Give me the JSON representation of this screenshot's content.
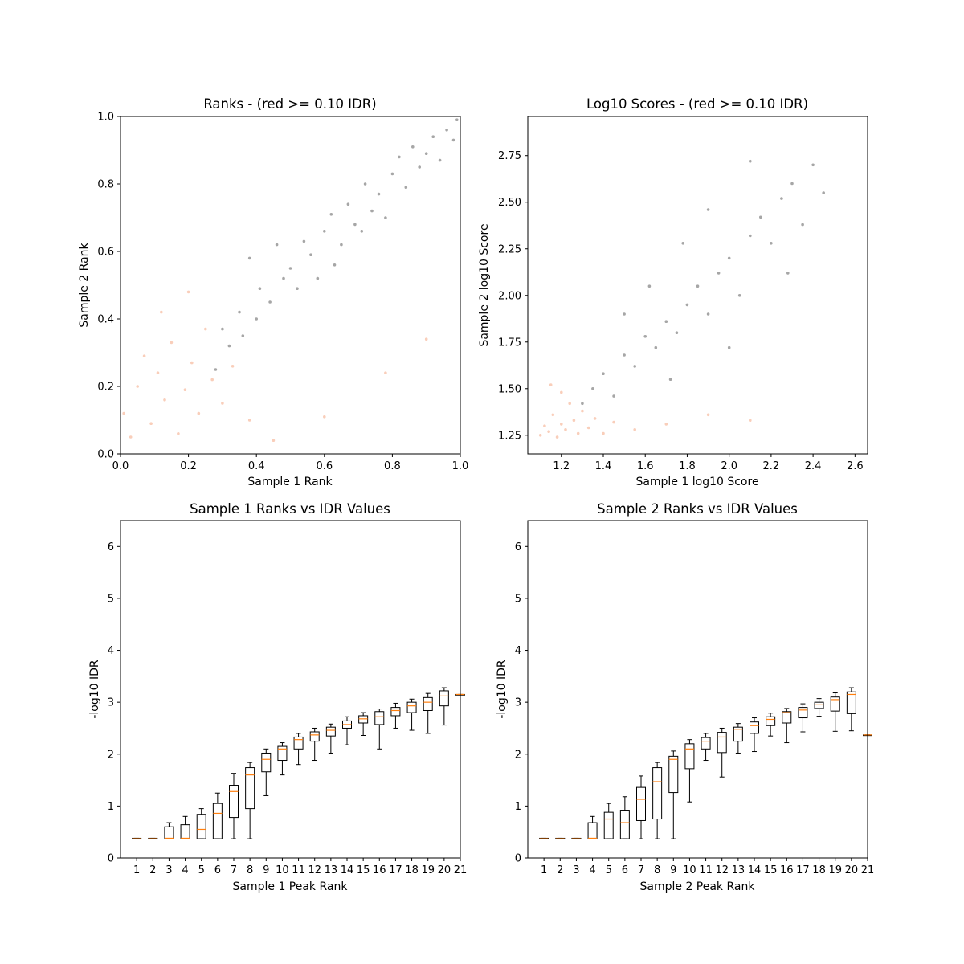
{
  "chart_data": [
    {
      "type": "scatter",
      "title": "Ranks - (red >= 0.10 IDR)",
      "xlabel": "Sample 1 Rank",
      "ylabel": "Sample 2 Rank",
      "xlim": [
        0.0,
        1.0
      ],
      "ylim": [
        0.0,
        1.0
      ],
      "xticks": [
        "0.0",
        "0.2",
        "0.4",
        "0.6",
        "0.8",
        "1.0"
      ],
      "yticks": [
        "0.0",
        "0.2",
        "0.4",
        "0.6",
        "0.8",
        "1.0"
      ],
      "grid": false,
      "colors": {
        "passing": "#808080",
        "failing": "#f4a582"
      },
      "series": [
        {
          "group": "passing",
          "points": [
            [
              0.28,
              0.25
            ],
            [
              0.3,
              0.37
            ],
            [
              0.32,
              0.32
            ],
            [
              0.35,
              0.42
            ],
            [
              0.36,
              0.35
            ],
            [
              0.38,
              0.58
            ],
            [
              0.4,
              0.4
            ],
            [
              0.41,
              0.49
            ],
            [
              0.44,
              0.45
            ],
            [
              0.46,
              0.62
            ],
            [
              0.48,
              0.52
            ],
            [
              0.5,
              0.55
            ],
            [
              0.52,
              0.49
            ],
            [
              0.54,
              0.63
            ],
            [
              0.56,
              0.59
            ],
            [
              0.58,
              0.52
            ],
            [
              0.6,
              0.66
            ],
            [
              0.62,
              0.71
            ],
            [
              0.63,
              0.56
            ],
            [
              0.65,
              0.62
            ],
            [
              0.67,
              0.74
            ],
            [
              0.69,
              0.68
            ],
            [
              0.71,
              0.66
            ],
            [
              0.72,
              0.8
            ],
            [
              0.74,
              0.72
            ],
            [
              0.76,
              0.77
            ],
            [
              0.78,
              0.7
            ],
            [
              0.8,
              0.83
            ],
            [
              0.82,
              0.88
            ],
            [
              0.84,
              0.79
            ],
            [
              0.86,
              0.91
            ],
            [
              0.88,
              0.85
            ],
            [
              0.9,
              0.89
            ],
            [
              0.92,
              0.94
            ],
            [
              0.94,
              0.87
            ],
            [
              0.96,
              0.96
            ],
            [
              0.98,
              0.93
            ],
            [
              0.99,
              0.99
            ]
          ]
        },
        {
          "group": "failing",
          "points": [
            [
              0.01,
              0.12
            ],
            [
              0.03,
              0.05
            ],
            [
              0.05,
              0.2
            ],
            [
              0.07,
              0.29
            ],
            [
              0.09,
              0.09
            ],
            [
              0.11,
              0.24
            ],
            [
              0.13,
              0.16
            ],
            [
              0.15,
              0.33
            ],
            [
              0.17,
              0.06
            ],
            [
              0.19,
              0.19
            ],
            [
              0.21,
              0.27
            ],
            [
              0.23,
              0.12
            ],
            [
              0.25,
              0.37
            ],
            [
              0.27,
              0.22
            ],
            [
              0.3,
              0.15
            ],
            [
              0.33,
              0.26
            ],
            [
              0.38,
              0.1
            ],
            [
              0.45,
              0.04
            ],
            [
              0.12,
              0.42
            ],
            [
              0.2,
              0.48
            ],
            [
              0.6,
              0.11
            ],
            [
              0.78,
              0.24
            ],
            [
              0.9,
              0.34
            ]
          ]
        }
      ]
    },
    {
      "type": "scatter",
      "title": "Log10 Scores - (red >= 0.10 IDR)",
      "xlabel": "Sample 1 log10 Score",
      "ylabel": "Sample 2 log10 Score",
      "xlim": [
        1.04,
        2.66
      ],
      "ylim": [
        1.15,
        2.96
      ],
      "xticks": [
        "1.2",
        "1.4",
        "1.6",
        "1.8",
        "2.0",
        "2.2",
        "2.4",
        "2.6"
      ],
      "yticks": [
        "1.25",
        "1.50",
        "1.75",
        "2.00",
        "2.25",
        "2.50",
        "2.75"
      ],
      "grid": false,
      "colors": {
        "passing": "#808080",
        "failing": "#f4a582"
      },
      "series": [
        {
          "group": "passing",
          "points": [
            [
              1.3,
              1.42
            ],
            [
              1.35,
              1.5
            ],
            [
              1.4,
              1.58
            ],
            [
              1.45,
              1.46
            ],
            [
              1.5,
              1.68
            ],
            [
              1.55,
              1.62
            ],
            [
              1.6,
              1.78
            ],
            [
              1.65,
              1.72
            ],
            [
              1.7,
              1.86
            ],
            [
              1.75,
              1.8
            ],
            [
              1.8,
              1.95
            ],
            [
              1.85,
              2.05
            ],
            [
              1.9,
              1.9
            ],
            [
              1.95,
              2.12
            ],
            [
              2.0,
              2.2
            ],
            [
              2.05,
              2.0
            ],
            [
              2.1,
              2.32
            ],
            [
              2.15,
              2.42
            ],
            [
              2.2,
              2.28
            ],
            [
              2.25,
              2.52
            ],
            [
              2.3,
              2.6
            ],
            [
              2.35,
              2.38
            ],
            [
              2.4,
              2.7
            ],
            [
              2.45,
              2.55
            ],
            [
              1.62,
              2.05
            ],
            [
              1.78,
              2.28
            ],
            [
              1.9,
              2.46
            ],
            [
              2.1,
              2.72
            ],
            [
              1.5,
              1.9
            ],
            [
              1.72,
              1.55
            ],
            [
              2.0,
              1.72
            ],
            [
              2.28,
              2.12
            ]
          ]
        },
        {
          "group": "failing",
          "points": [
            [
              1.1,
              1.25
            ],
            [
              1.12,
              1.3
            ],
            [
              1.14,
              1.27
            ],
            [
              1.16,
              1.36
            ],
            [
              1.18,
              1.24
            ],
            [
              1.2,
              1.31
            ],
            [
              1.22,
              1.28
            ],
            [
              1.24,
              1.42
            ],
            [
              1.26,
              1.33
            ],
            [
              1.28,
              1.26
            ],
            [
              1.3,
              1.38
            ],
            [
              1.33,
              1.29
            ],
            [
              1.36,
              1.34
            ],
            [
              1.4,
              1.26
            ],
            [
              1.45,
              1.32
            ],
            [
              1.55,
              1.28
            ],
            [
              1.7,
              1.31
            ],
            [
              1.9,
              1.36
            ],
            [
              2.1,
              1.33
            ],
            [
              1.15,
              1.52
            ],
            [
              1.2,
              1.48
            ]
          ]
        }
      ]
    },
    {
      "type": "box",
      "title": "Sample 1 Ranks vs IDR Values",
      "xlabel": "Sample 1 Peak Rank",
      "ylabel": "-log10 IDR",
      "ylim": [
        0,
        6.5
      ],
      "xticks": [
        "1",
        "2",
        "3",
        "4",
        "5",
        "6",
        "7",
        "8",
        "9",
        "10",
        "11",
        "12",
        "13",
        "14",
        "15",
        "16",
        "17",
        "18",
        "19",
        "20",
        "21"
      ],
      "yticks": [
        "0",
        "1",
        "2",
        "3",
        "4",
        "5",
        "6"
      ],
      "grid": false,
      "series": [
        {
          "name": "",
          "boxes": [
            {
              "x": 1,
              "whislo": 0.37,
              "q1": 0.37,
              "med": 0.37,
              "q3": 0.38,
              "whishi": 0.38
            },
            {
              "x": 2,
              "whislo": 0.37,
              "q1": 0.37,
              "med": 0.37,
              "q3": 0.38,
              "whishi": 0.38
            },
            {
              "x": 3,
              "whislo": 0.37,
              "q1": 0.37,
              "med": 0.38,
              "q3": 0.6,
              "whishi": 0.68
            },
            {
              "x": 4,
              "whislo": 0.37,
              "q1": 0.37,
              "med": 0.38,
              "q3": 0.64,
              "whishi": 0.8
            },
            {
              "x": 5,
              "whislo": 0.37,
              "q1": 0.37,
              "med": 0.55,
              "q3": 0.84,
              "whishi": 0.95
            },
            {
              "x": 6,
              "whislo": 0.37,
              "q1": 0.37,
              "med": 0.86,
              "q3": 1.05,
              "whishi": 1.25
            },
            {
              "x": 7,
              "whislo": 0.37,
              "q1": 0.78,
              "med": 1.28,
              "q3": 1.4,
              "whishi": 1.63
            },
            {
              "x": 8,
              "whislo": 0.37,
              "q1": 0.95,
              "med": 1.6,
              "q3": 1.74,
              "whishi": 1.84
            },
            {
              "x": 9,
              "whislo": 1.2,
              "q1": 1.66,
              "med": 1.9,
              "q3": 2.02,
              "whishi": 2.1
            },
            {
              "x": 10,
              "whislo": 1.6,
              "q1": 1.88,
              "med": 2.1,
              "q3": 2.15,
              "whishi": 2.22
            },
            {
              "x": 11,
              "whislo": 1.8,
              "q1": 2.1,
              "med": 2.28,
              "q3": 2.33,
              "whishi": 2.4
            },
            {
              "x": 12,
              "whislo": 1.88,
              "q1": 2.25,
              "med": 2.37,
              "q3": 2.43,
              "whishi": 2.5
            },
            {
              "x": 13,
              "whislo": 2.02,
              "q1": 2.35,
              "med": 2.46,
              "q3": 2.52,
              "whishi": 2.58
            },
            {
              "x": 14,
              "whislo": 2.18,
              "q1": 2.5,
              "med": 2.57,
              "q3": 2.64,
              "whishi": 2.72
            },
            {
              "x": 15,
              "whislo": 2.36,
              "q1": 2.6,
              "med": 2.68,
              "q3": 2.74,
              "whishi": 2.8
            },
            {
              "x": 16,
              "whislo": 2.1,
              "q1": 2.57,
              "med": 2.72,
              "q3": 2.82,
              "whishi": 2.87
            },
            {
              "x": 17,
              "whislo": 2.5,
              "q1": 2.74,
              "med": 2.84,
              "q3": 2.9,
              "whishi": 2.98
            },
            {
              "x": 18,
              "whislo": 2.46,
              "q1": 2.8,
              "med": 2.93,
              "q3": 3.0,
              "whishi": 3.06
            },
            {
              "x": 19,
              "whislo": 2.4,
              "q1": 2.84,
              "med": 3.0,
              "q3": 3.09,
              "whishi": 3.17
            },
            {
              "x": 20,
              "whislo": 2.56,
              "q1": 2.93,
              "med": 3.12,
              "q3": 3.22,
              "whishi": 3.28
            },
            {
              "x": 21,
              "whislo": 3.15,
              "q1": 3.15,
              "med": 3.15,
              "q3": 3.15,
              "whishi": 3.15
            }
          ]
        }
      ]
    },
    {
      "type": "box",
      "title": "Sample 2 Ranks vs IDR Values",
      "xlabel": "Sample 2 Peak Rank",
      "ylabel": "-log10 IDR",
      "ylim": [
        0,
        6.5
      ],
      "xticks": [
        "1",
        "2",
        "3",
        "4",
        "5",
        "6",
        "7",
        "8",
        "9",
        "10",
        "11",
        "12",
        "13",
        "14",
        "15",
        "16",
        "17",
        "18",
        "19",
        "20",
        "21"
      ],
      "yticks": [
        "0",
        "1",
        "2",
        "3",
        "4",
        "5",
        "6"
      ],
      "grid": false,
      "series": [
        {
          "name": "",
          "boxes": [
            {
              "x": 1,
              "whislo": 0.37,
              "q1": 0.37,
              "med": 0.37,
              "q3": 0.38,
              "whishi": 0.38
            },
            {
              "x": 2,
              "whislo": 0.37,
              "q1": 0.37,
              "med": 0.37,
              "q3": 0.38,
              "whishi": 0.38
            },
            {
              "x": 3,
              "whislo": 0.37,
              "q1": 0.37,
              "med": 0.37,
              "q3": 0.38,
              "whishi": 0.38
            },
            {
              "x": 4,
              "whislo": 0.37,
              "q1": 0.37,
              "med": 0.38,
              "q3": 0.68,
              "whishi": 0.8
            },
            {
              "x": 5,
              "whislo": 0.37,
              "q1": 0.37,
              "med": 0.75,
              "q3": 0.88,
              "whishi": 1.05
            },
            {
              "x": 6,
              "whislo": 0.37,
              "q1": 0.37,
              "med": 0.68,
              "q3": 0.92,
              "whishi": 1.18
            },
            {
              "x": 7,
              "whislo": 0.37,
              "q1": 0.72,
              "med": 1.13,
              "q3": 1.36,
              "whishi": 1.58
            },
            {
              "x": 8,
              "whislo": 0.37,
              "q1": 0.75,
              "med": 1.47,
              "q3": 1.74,
              "whishi": 1.84
            },
            {
              "x": 9,
              "whislo": 0.37,
              "q1": 1.26,
              "med": 1.9,
              "q3": 1.96,
              "whishi": 2.06
            },
            {
              "x": 10,
              "whislo": 1.08,
              "q1": 1.72,
              "med": 2.1,
              "q3": 2.2,
              "whishi": 2.28
            },
            {
              "x": 11,
              "whislo": 1.88,
              "q1": 2.1,
              "med": 2.25,
              "q3": 2.32,
              "whishi": 2.4
            },
            {
              "x": 12,
              "whislo": 1.56,
              "q1": 2.03,
              "med": 2.33,
              "q3": 2.42,
              "whishi": 2.5
            },
            {
              "x": 13,
              "whislo": 2.02,
              "q1": 2.25,
              "med": 2.48,
              "q3": 2.52,
              "whishi": 2.59
            },
            {
              "x": 14,
              "whislo": 2.05,
              "q1": 2.4,
              "med": 2.55,
              "q3": 2.62,
              "whishi": 2.7
            },
            {
              "x": 15,
              "whislo": 2.35,
              "q1": 2.55,
              "med": 2.67,
              "q3": 2.72,
              "whishi": 2.79
            },
            {
              "x": 16,
              "whislo": 2.22,
              "q1": 2.6,
              "med": 2.8,
              "q3": 2.82,
              "whishi": 2.88
            },
            {
              "x": 17,
              "whislo": 2.43,
              "q1": 2.7,
              "med": 2.85,
              "q3": 2.9,
              "whishi": 2.97
            },
            {
              "x": 18,
              "whislo": 2.73,
              "q1": 2.88,
              "med": 2.95,
              "q3": 3.0,
              "whishi": 3.07
            },
            {
              "x": 19,
              "whislo": 2.44,
              "q1": 2.83,
              "med": 3.05,
              "q3": 3.1,
              "whishi": 3.18
            },
            {
              "x": 20,
              "whislo": 2.45,
              "q1": 2.78,
              "med": 3.15,
              "q3": 3.2,
              "whishi": 3.28
            },
            {
              "x": 21,
              "whislo": 2.37,
              "q1": 2.37,
              "med": 2.37,
              "q3": 2.37,
              "whishi": 2.37
            }
          ]
        }
      ]
    }
  ]
}
